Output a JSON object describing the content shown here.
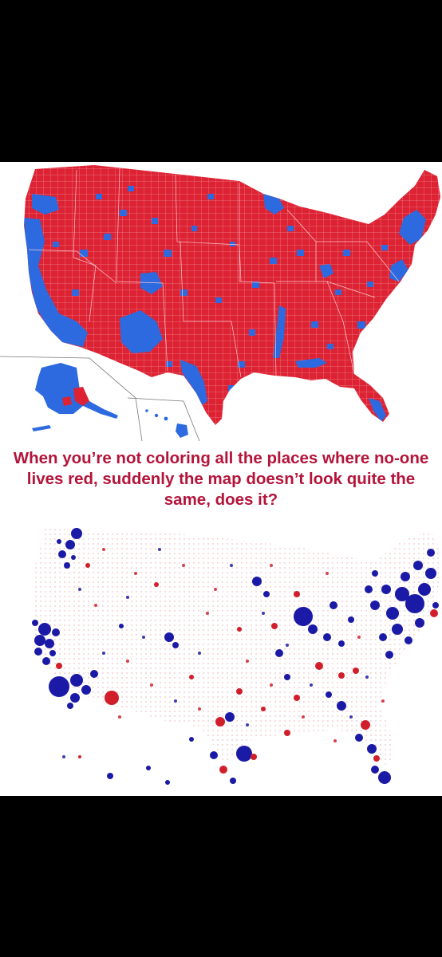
{
  "caption": "When you’re not coloring all the places where no-one lives red, suddenly the map doesn’t look quite the same, does it?",
  "colors": {
    "background": "#000000",
    "panel": "#ffffff",
    "republican_red": "#dd2233",
    "democrat_blue": "#2d6ae0",
    "bubble_blue": "#1a1aa6",
    "bubble_red": "#d01f2a",
    "caption_text": "#b4143a"
  },
  "maps": [
    {
      "type": "county choropleth",
      "regions": [
        "contiguous US",
        "Alaska",
        "Hawaii"
      ]
    },
    {
      "type": "proportional symbol (population bubbles)",
      "regions": [
        "contiguous US",
        "Alaska",
        "Hawaii"
      ]
    }
  ]
}
